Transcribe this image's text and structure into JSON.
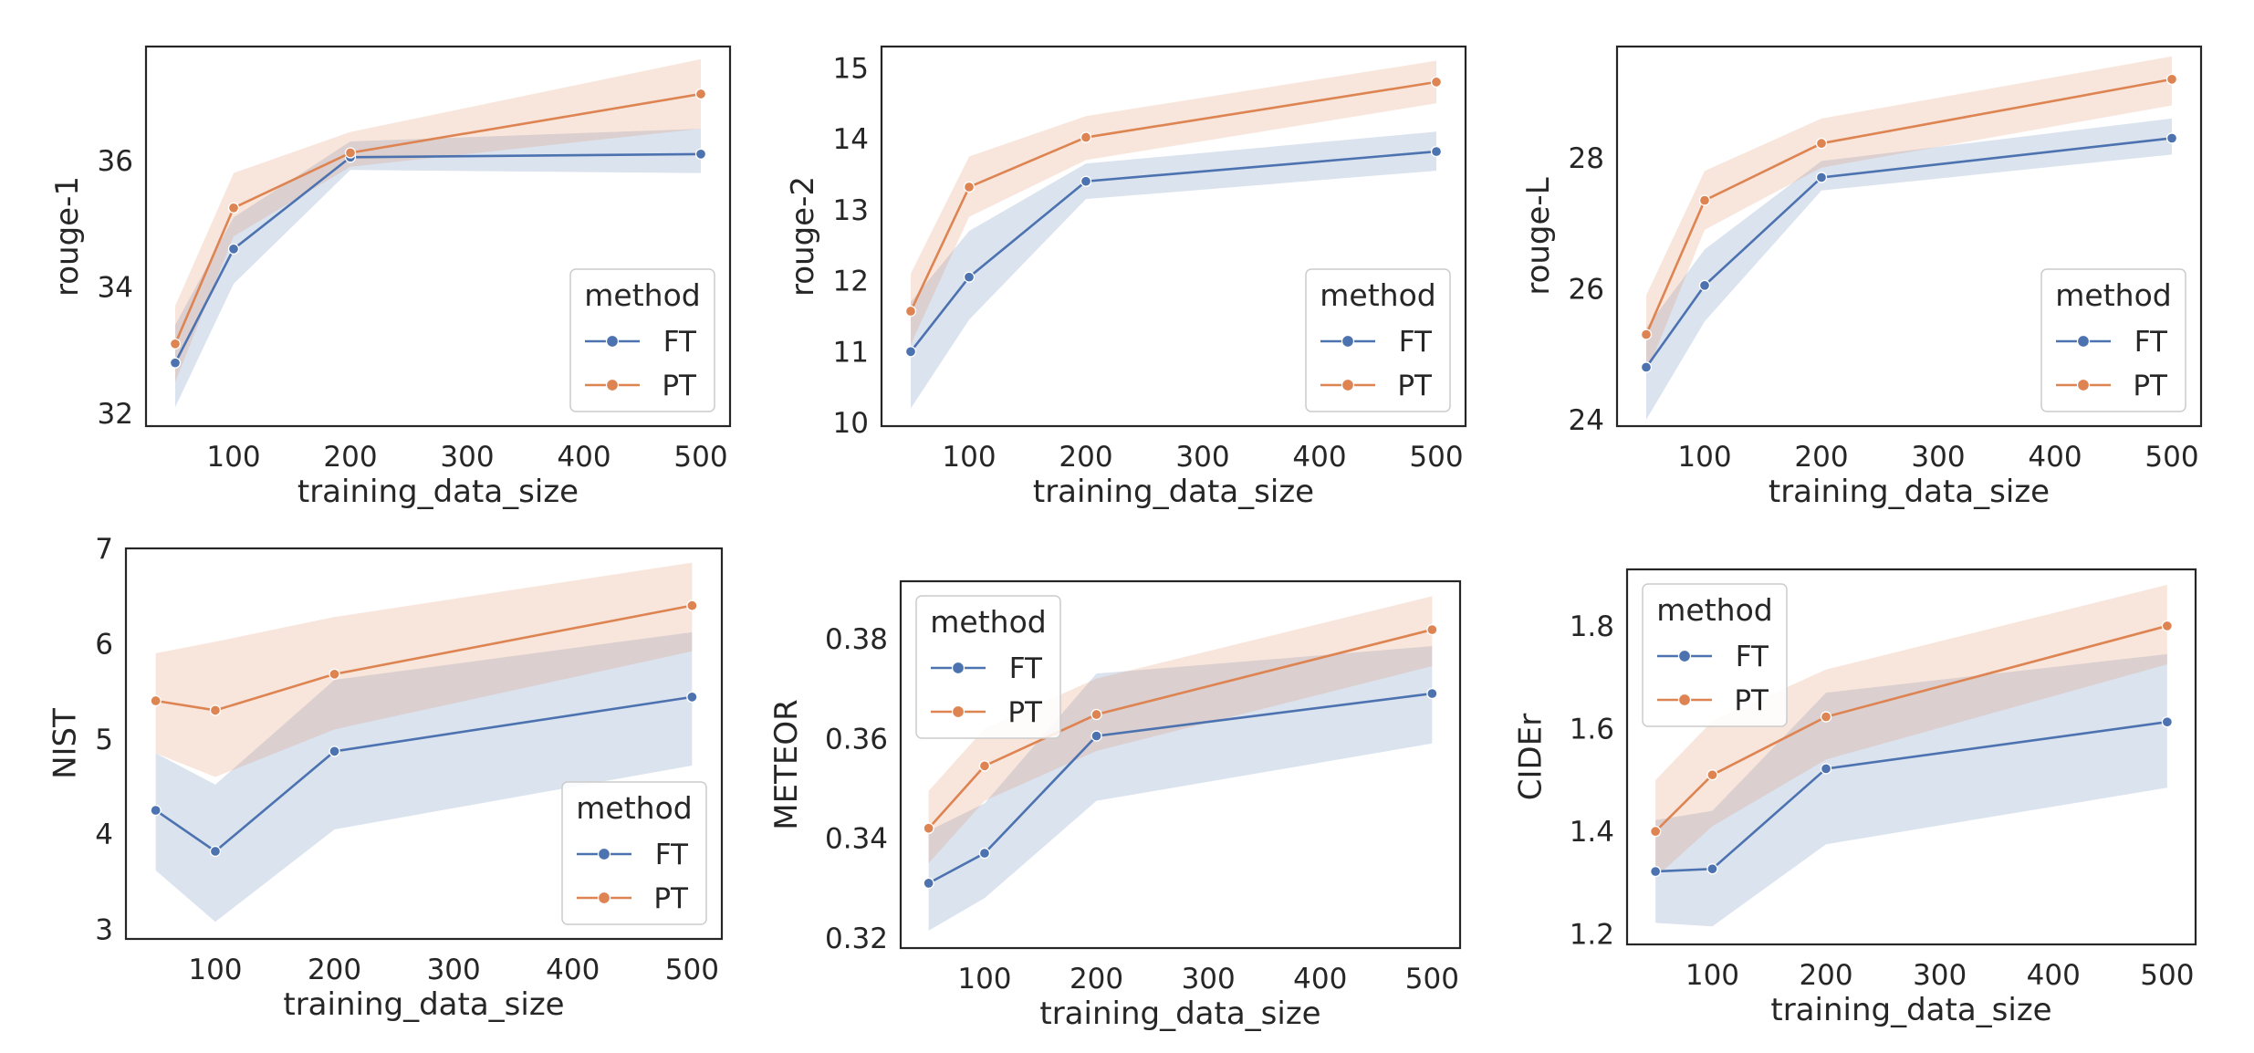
{
  "colors": {
    "FT": "#4c72b0",
    "PT": "#dd8452"
  },
  "chart_data": [
    {
      "type": "line",
      "x": [
        50,
        100,
        200,
        500
      ],
      "xlabel": "training_data_size",
      "ylabel": "rouge-1",
      "xlim": [
        25,
        525
      ],
      "ylim": [
        31.8,
        37.8
      ],
      "xticks": [
        100,
        200,
        300,
        400,
        500
      ],
      "yticks": [
        32,
        34,
        36
      ],
      "legend": {
        "title": "method",
        "position": "bottom-right"
      },
      "series": [
        {
          "name": "FT",
          "values": [
            32.8,
            34.6,
            36.05,
            36.1
          ],
          "ci_low": [
            32.1,
            34.05,
            35.85,
            35.8
          ],
          "ci_high": [
            33.4,
            35.1,
            36.3,
            36.5
          ]
        },
        {
          "name": "PT",
          "values": [
            33.1,
            35.25,
            36.12,
            37.05
          ],
          "ci_low": [
            32.5,
            34.8,
            35.9,
            36.5
          ],
          "ci_high": [
            33.7,
            35.8,
            36.45,
            37.6
          ]
        }
      ]
    },
    {
      "type": "line",
      "x": [
        50,
        100,
        200,
        500
      ],
      "xlabel": "training_data_size",
      "ylabel": "rouge-2",
      "xlim": [
        25,
        525
      ],
      "ylim": [
        9.95,
        15.3
      ],
      "xticks": [
        100,
        200,
        300,
        400,
        500
      ],
      "yticks": [
        10,
        11,
        12,
        13,
        14,
        15
      ],
      "legend": {
        "title": "method",
        "position": "bottom-right"
      },
      "series": [
        {
          "name": "FT",
          "values": [
            11.0,
            12.05,
            13.4,
            13.82
          ],
          "ci_low": [
            10.2,
            11.45,
            13.15,
            13.55
          ],
          "ci_high": [
            11.7,
            12.7,
            13.65,
            14.1
          ]
        },
        {
          "name": "PT",
          "values": [
            11.57,
            13.32,
            14.02,
            14.8
          ],
          "ci_low": [
            11.1,
            12.9,
            13.7,
            14.5
          ],
          "ci_high": [
            12.1,
            13.75,
            14.32,
            15.1
          ]
        }
      ]
    },
    {
      "type": "line",
      "x": [
        50,
        100,
        200,
        500
      ],
      "xlabel": "training_data_size",
      "ylabel": "rouge-L",
      "xlim": [
        25,
        525
      ],
      "ylim": [
        23.9,
        29.7
      ],
      "xticks": [
        100,
        200,
        300,
        400,
        500
      ],
      "yticks": [
        24,
        26,
        28
      ],
      "legend": {
        "title": "method",
        "position": "bottom-right"
      },
      "series": [
        {
          "name": "FT",
          "values": [
            24.8,
            26.05,
            27.7,
            28.3
          ],
          "ci_low": [
            24.0,
            25.5,
            27.5,
            28.05
          ],
          "ci_high": [
            25.4,
            26.6,
            27.95,
            28.6
          ]
        },
        {
          "name": "PT",
          "values": [
            25.3,
            27.35,
            28.22,
            29.2
          ],
          "ci_low": [
            24.7,
            26.9,
            27.85,
            28.8
          ],
          "ci_high": [
            25.9,
            27.8,
            28.6,
            29.55
          ]
        }
      ]
    },
    {
      "type": "line",
      "x": [
        50,
        100,
        200,
        500
      ],
      "xlabel": "training_data_size",
      "ylabel": "NIST",
      "xlim": [
        25,
        525
      ],
      "ylim": [
        2.9,
        7.0
      ],
      "xticks": [
        100,
        200,
        300,
        400,
        500
      ],
      "yticks": [
        3,
        4,
        5,
        6,
        7
      ],
      "legend": {
        "title": "method",
        "position": "bottom-right"
      },
      "series": [
        {
          "name": "FT",
          "values": [
            4.25,
            3.82,
            4.87,
            5.44
          ],
          "ci_low": [
            3.62,
            3.08,
            4.05,
            4.72
          ],
          "ci_high": [
            4.85,
            4.52,
            5.62,
            6.12
          ]
        },
        {
          "name": "PT",
          "values": [
            5.4,
            5.3,
            5.68,
            6.4
          ],
          "ci_low": [
            4.85,
            4.6,
            5.1,
            5.92
          ],
          "ci_high": [
            5.9,
            6.02,
            6.28,
            6.85
          ]
        }
      ]
    },
    {
      "type": "line",
      "x": [
        50,
        100,
        200,
        500
      ],
      "xlabel": "training_data_size",
      "ylabel": "METEOR",
      "xlim": [
        25,
        525
      ],
      "ylim": [
        0.318,
        0.3915
      ],
      "xticks": [
        100,
        200,
        300,
        400,
        500
      ],
      "yticks": [
        0.32,
        0.34,
        0.36,
        0.38
      ],
      "legend": {
        "title": "method",
        "position": "top-left"
      },
      "series": [
        {
          "name": "FT",
          "values": [
            0.331,
            0.337,
            0.3605,
            0.369
          ],
          "ci_low": [
            0.3215,
            0.328,
            0.3475,
            0.359
          ],
          "ci_high": [
            0.3415,
            0.347,
            0.373,
            0.3785
          ]
        },
        {
          "name": "PT",
          "values": [
            0.342,
            0.3545,
            0.3648,
            0.3818
          ],
          "ci_low": [
            0.335,
            0.3475,
            0.3575,
            0.3745
          ],
          "ci_high": [
            0.3495,
            0.362,
            0.372,
            0.3885
          ]
        }
      ]
    },
    {
      "type": "line",
      "x": [
        50,
        100,
        200,
        500
      ],
      "xlabel": "training_data_size",
      "ylabel": "CIDEr",
      "xlim": [
        25,
        525
      ],
      "ylim": [
        1.18,
        1.91
      ],
      "xticks": [
        100,
        200,
        300,
        400,
        500
      ],
      "yticks": [
        1.2,
        1.4,
        1.6,
        1.8
      ],
      "legend": {
        "title": "method",
        "position": "top-left"
      },
      "series": [
        {
          "name": "FT",
          "values": [
            1.322,
            1.327,
            1.522,
            1.613
          ],
          "ci_low": [
            1.222,
            1.215,
            1.375,
            1.485
          ],
          "ci_high": [
            1.422,
            1.44,
            1.67,
            1.745
          ]
        },
        {
          "name": "PT",
          "values": [
            1.4,
            1.51,
            1.623,
            1.8
          ],
          "ci_low": [
            1.31,
            1.41,
            1.54,
            1.725
          ],
          "ci_high": [
            1.5,
            1.615,
            1.715,
            1.88
          ]
        }
      ]
    }
  ]
}
